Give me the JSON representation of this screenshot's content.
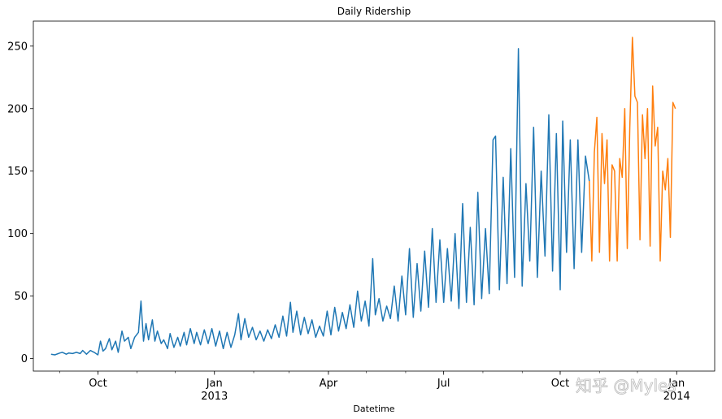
{
  "watermark": "知乎 @Myles",
  "chart_data": {
    "type": "line",
    "title": "Daily Ridership",
    "xlabel": "Datetime",
    "ylabel": "",
    "xlim": [
      "2012-08-11",
      "2014-01-31"
    ],
    "ylim": [
      -10,
      270
    ],
    "y_ticks": [
      0,
      50,
      100,
      150,
      200,
      250
    ],
    "x_ticks": [
      {
        "date": "2012-10-01",
        "label": "Oct",
        "sublabel": ""
      },
      {
        "date": "2013-01-01",
        "label": "Jan",
        "sublabel": "2013"
      },
      {
        "date": "2013-04-01",
        "label": "Apr",
        "sublabel": ""
      },
      {
        "date": "2013-07-01",
        "label": "Jul",
        "sublabel": ""
      },
      {
        "date": "2013-10-01",
        "label": "Oct",
        "sublabel": ""
      },
      {
        "date": "2014-01-01",
        "label": "Jan",
        "sublabel": "2014"
      }
    ],
    "series": [
      {
        "color": "#1f77b4",
        "points": [
          [
            "2012-08-25",
            3.5
          ],
          [
            "2012-08-28",
            3
          ],
          [
            "2012-09-01",
            4.5
          ],
          [
            "2012-09-03",
            5
          ],
          [
            "2012-09-06",
            3.5
          ],
          [
            "2012-09-08",
            4.5
          ],
          [
            "2012-09-11",
            4
          ],
          [
            "2012-09-14",
            5
          ],
          [
            "2012-09-17",
            4
          ],
          [
            "2012-09-19",
            6.5
          ],
          [
            "2012-09-22",
            3.5
          ],
          [
            "2012-09-25",
            6.5
          ],
          [
            "2012-09-28",
            5
          ],
          [
            "2012-10-01",
            3
          ],
          [
            "2012-10-03",
            14
          ],
          [
            "2012-10-05",
            6
          ],
          [
            "2012-10-07",
            8
          ],
          [
            "2012-10-10",
            16
          ],
          [
            "2012-10-12",
            7
          ],
          [
            "2012-10-15",
            14
          ],
          [
            "2012-10-17",
            5
          ],
          [
            "2012-10-20",
            22
          ],
          [
            "2012-10-22",
            14
          ],
          [
            "2012-10-25",
            17
          ],
          [
            "2012-10-27",
            8
          ],
          [
            "2012-10-30",
            17
          ],
          [
            "2012-11-02",
            21
          ],
          [
            "2012-11-04",
            46
          ],
          [
            "2012-11-06",
            14
          ],
          [
            "2012-11-08",
            28
          ],
          [
            "2012-11-10",
            15
          ],
          [
            "2012-11-13",
            31
          ],
          [
            "2012-11-15",
            14
          ],
          [
            "2012-11-17",
            22
          ],
          [
            "2012-11-20",
            12
          ],
          [
            "2012-11-22",
            15
          ],
          [
            "2012-11-25",
            8
          ],
          [
            "2012-11-27",
            20
          ],
          [
            "2012-11-30",
            9
          ],
          [
            "2012-12-03",
            17
          ],
          [
            "2012-12-05",
            10
          ],
          [
            "2012-12-08",
            21
          ],
          [
            "2012-12-10",
            11
          ],
          [
            "2012-12-13",
            24
          ],
          [
            "2012-12-16",
            12
          ],
          [
            "2012-12-18",
            21
          ],
          [
            "2012-12-21",
            11
          ],
          [
            "2012-12-24",
            23
          ],
          [
            "2012-12-27",
            12
          ],
          [
            "2012-12-30",
            24
          ],
          [
            "2013-01-02",
            10
          ],
          [
            "2013-01-05",
            22
          ],
          [
            "2013-01-08",
            8
          ],
          [
            "2013-01-11",
            21
          ],
          [
            "2013-01-14",
            9
          ],
          [
            "2013-01-17",
            19
          ],
          [
            "2013-01-20",
            36
          ],
          [
            "2013-01-22",
            15
          ],
          [
            "2013-01-25",
            32
          ],
          [
            "2013-01-28",
            17
          ],
          [
            "2013-01-31",
            25
          ],
          [
            "2013-02-03",
            15
          ],
          [
            "2013-02-06",
            22
          ],
          [
            "2013-02-09",
            14
          ],
          [
            "2013-02-12",
            23
          ],
          [
            "2013-02-15",
            16
          ],
          [
            "2013-02-18",
            27
          ],
          [
            "2013-02-21",
            17
          ],
          [
            "2013-02-24",
            34
          ],
          [
            "2013-02-27",
            18
          ],
          [
            "2013-03-02",
            45
          ],
          [
            "2013-03-04",
            21
          ],
          [
            "2013-03-07",
            38
          ],
          [
            "2013-03-10",
            19
          ],
          [
            "2013-03-13",
            33
          ],
          [
            "2013-03-16",
            20
          ],
          [
            "2013-03-19",
            31
          ],
          [
            "2013-03-22",
            17
          ],
          [
            "2013-03-25",
            26
          ],
          [
            "2013-03-28",
            18
          ],
          [
            "2013-03-31",
            38
          ],
          [
            "2013-04-03",
            19
          ],
          [
            "2013-04-06",
            41
          ],
          [
            "2013-04-09",
            22
          ],
          [
            "2013-04-12",
            37
          ],
          [
            "2013-04-15",
            24
          ],
          [
            "2013-04-18",
            43
          ],
          [
            "2013-04-21",
            25
          ],
          [
            "2013-04-24",
            54
          ],
          [
            "2013-04-27",
            30
          ],
          [
            "2013-04-30",
            46
          ],
          [
            "2013-05-03",
            26
          ],
          [
            "2013-05-06",
            80
          ],
          [
            "2013-05-08",
            35
          ],
          [
            "2013-05-11",
            48
          ],
          [
            "2013-05-14",
            30
          ],
          [
            "2013-05-17",
            42
          ],
          [
            "2013-05-20",
            32
          ],
          [
            "2013-05-23",
            58
          ],
          [
            "2013-05-26",
            30
          ],
          [
            "2013-05-29",
            66
          ],
          [
            "2013-06-01",
            35
          ],
          [
            "2013-06-04",
            88
          ],
          [
            "2013-06-07",
            33
          ],
          [
            "2013-06-10",
            76
          ],
          [
            "2013-06-13",
            38
          ],
          [
            "2013-06-16",
            86
          ],
          [
            "2013-06-19",
            41
          ],
          [
            "2013-06-22",
            104
          ],
          [
            "2013-06-25",
            45
          ],
          [
            "2013-06-28",
            95
          ],
          [
            "2013-07-01",
            45
          ],
          [
            "2013-07-04",
            88
          ],
          [
            "2013-07-07",
            46
          ],
          [
            "2013-07-10",
            100
          ],
          [
            "2013-07-13",
            40
          ],
          [
            "2013-07-16",
            124
          ],
          [
            "2013-07-19",
            45
          ],
          [
            "2013-07-22",
            105
          ],
          [
            "2013-07-25",
            43
          ],
          [
            "2013-07-28",
            133
          ],
          [
            "2013-07-31",
            48
          ],
          [
            "2013-08-03",
            104
          ],
          [
            "2013-08-06",
            52
          ],
          [
            "2013-08-09",
            175
          ],
          [
            "2013-08-11",
            178
          ],
          [
            "2013-08-14",
            55
          ],
          [
            "2013-08-17",
            145
          ],
          [
            "2013-08-20",
            60
          ],
          [
            "2013-08-23",
            168
          ],
          [
            "2013-08-26",
            65
          ],
          [
            "2013-08-29",
            248
          ],
          [
            "2013-09-01",
            58
          ],
          [
            "2013-09-04",
            140
          ],
          [
            "2013-09-07",
            78
          ],
          [
            "2013-09-10",
            185
          ],
          [
            "2013-09-13",
            65
          ],
          [
            "2013-09-16",
            150
          ],
          [
            "2013-09-19",
            82
          ],
          [
            "2013-09-22",
            195
          ],
          [
            "2013-09-25",
            70
          ],
          [
            "2013-09-28",
            180
          ],
          [
            "2013-10-01",
            55
          ],
          [
            "2013-10-03",
            190
          ],
          [
            "2013-10-06",
            85
          ],
          [
            "2013-10-09",
            175
          ],
          [
            "2013-10-12",
            72
          ],
          [
            "2013-10-15",
            175
          ],
          [
            "2013-10-18",
            85
          ],
          [
            "2013-10-21",
            162
          ],
          [
            "2013-10-24",
            142
          ]
        ]
      },
      {
        "color": "#ff7f0e",
        "points": [
          [
            "2013-10-24",
            142
          ],
          [
            "2013-10-26",
            78
          ],
          [
            "2013-10-28",
            165
          ],
          [
            "2013-10-30",
            193
          ],
          [
            "2013-11-01",
            85
          ],
          [
            "2013-11-03",
            180
          ],
          [
            "2013-11-05",
            140
          ],
          [
            "2013-11-07",
            175
          ],
          [
            "2013-11-09",
            78
          ],
          [
            "2013-11-11",
            155
          ],
          [
            "2013-11-13",
            150
          ],
          [
            "2013-11-15",
            78
          ],
          [
            "2013-11-17",
            160
          ],
          [
            "2013-11-19",
            145
          ],
          [
            "2013-11-21",
            200
          ],
          [
            "2013-11-23",
            88
          ],
          [
            "2013-11-25",
            185
          ],
          [
            "2013-11-27",
            257
          ],
          [
            "2013-11-29",
            210
          ],
          [
            "2013-12-01",
            205
          ],
          [
            "2013-12-03",
            95
          ],
          [
            "2013-12-05",
            195
          ],
          [
            "2013-12-07",
            160
          ],
          [
            "2013-12-09",
            200
          ],
          [
            "2013-12-11",
            90
          ],
          [
            "2013-12-13",
            218
          ],
          [
            "2013-12-15",
            170
          ],
          [
            "2013-12-17",
            185
          ],
          [
            "2013-12-19",
            78
          ],
          [
            "2013-12-21",
            150
          ],
          [
            "2013-12-23",
            135
          ],
          [
            "2013-12-25",
            160
          ],
          [
            "2013-12-27",
            97
          ],
          [
            "2013-12-29",
            205
          ],
          [
            "2013-12-31",
            200
          ]
        ]
      }
    ]
  }
}
